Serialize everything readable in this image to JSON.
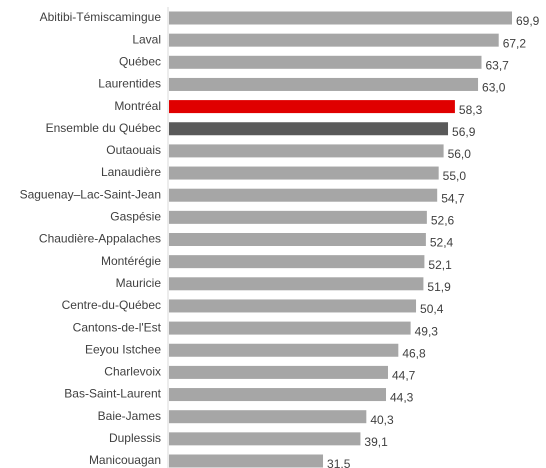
{
  "chart_data": {
    "type": "bar",
    "orientation": "horizontal",
    "categories": [
      "Abitibi-Témiscamingue",
      "Laval",
      "Québec",
      "Laurentides",
      "Montréal",
      "Ensemble du Québec",
      "Outaouais",
      "Lanaudière",
      "Saguenay–Lac-Saint-Jean",
      "Gaspésie",
      "Chaudière-Appalaches",
      "Montérégie",
      "Mauricie",
      "Centre-du-Québec",
      "Cantons-de-l'Est",
      "Eeyou Istchee",
      "Charlevoix",
      "Bas-Saint-Laurent",
      "Baie-James",
      "Duplessis",
      "Manicouagan"
    ],
    "values": [
      69.9,
      67.2,
      63.7,
      63.0,
      58.3,
      56.9,
      56.0,
      55.0,
      54.7,
      52.6,
      52.4,
      52.1,
      51.9,
      50.4,
      49.3,
      46.8,
      44.7,
      44.3,
      40.3,
      39.1,
      31.5
    ],
    "value_labels": [
      "69,9",
      "67,2",
      "63,7",
      "63,0",
      "58,3",
      "56,9",
      "56,0",
      "55,0",
      "54,7",
      "52,6",
      "52,4",
      "52,1",
      "51,9",
      "50,4",
      "49,3",
      "46,8",
      "44,7",
      "44,3",
      "40,3",
      "39,1",
      "31,5"
    ],
    "colors": [
      "#a6a6a6",
      "#a6a6a6",
      "#a6a6a6",
      "#a6a6a6",
      "#e00000",
      "#595959",
      "#a6a6a6",
      "#a6a6a6",
      "#a6a6a6",
      "#a6a6a6",
      "#a6a6a6",
      "#a6a6a6",
      "#a6a6a6",
      "#a6a6a6",
      "#a6a6a6",
      "#a6a6a6",
      "#a6a6a6",
      "#a6a6a6",
      "#a6a6a6",
      "#a6a6a6",
      "#a6a6a6"
    ]
  }
}
